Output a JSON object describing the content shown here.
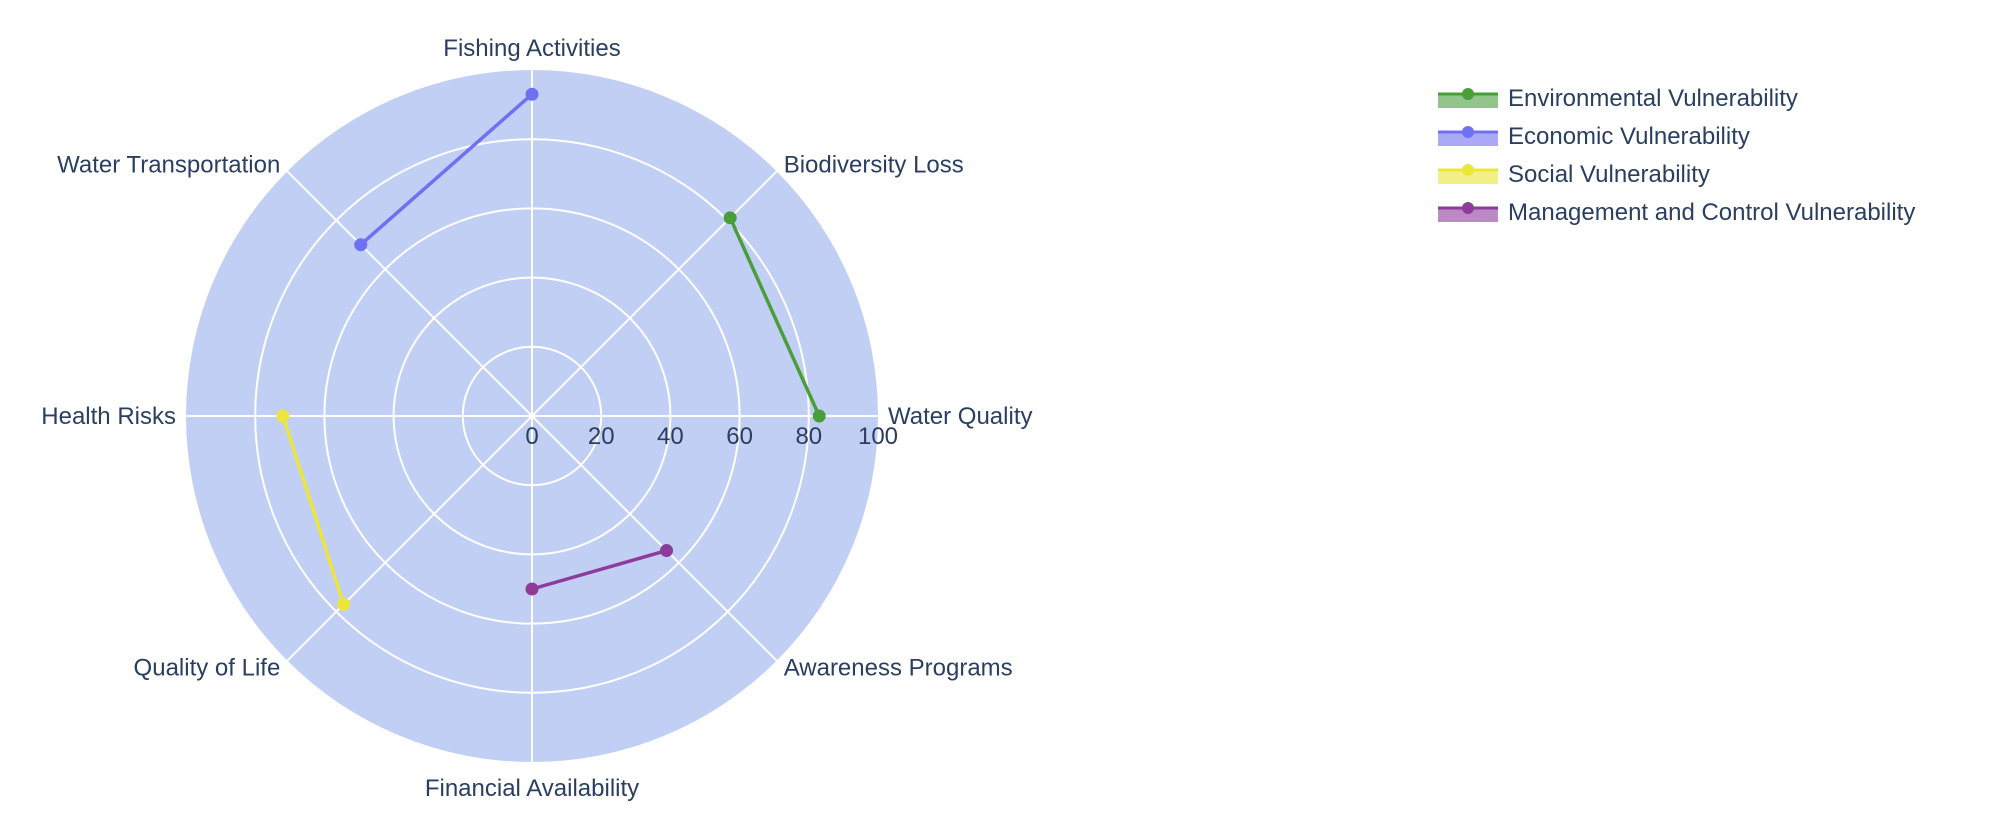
{
  "chart_data": {
    "type": "radar",
    "axes": [
      "Water Quality",
      "Biodiversity Loss",
      "Fishing Activities",
      "Water Transportation",
      "Health Risks",
      "Quality of Life",
      "Financial Availability",
      "Awareness Programs"
    ],
    "radial_range": [
      0,
      100
    ],
    "radial_ticks": [
      0,
      20,
      40,
      60,
      80,
      100
    ],
    "grid": true,
    "legend_position": "top-right",
    "series": [
      {
        "name": "Environmental Vulnerability",
        "color": "#4a9e3a",
        "points": [
          {
            "axis": "Water Quality",
            "value": 83
          },
          {
            "axis": "Biodiversity Loss",
            "value": 81
          }
        ]
      },
      {
        "name": "Economic Vulnerability",
        "color": "#7070f2",
        "points": [
          {
            "axis": "Fishing Activities",
            "value": 93
          },
          {
            "axis": "Water Transportation",
            "value": 70
          }
        ]
      },
      {
        "name": "Social Vulnerability",
        "color": "#ece63a",
        "points": [
          {
            "axis": "Health Risks",
            "value": 72
          },
          {
            "axis": "Quality of Life",
            "value": 77
          }
        ]
      },
      {
        "name": "Management and Control Vulnerability",
        "color": "#8e3c9a",
        "points": [
          {
            "axis": "Financial Availability",
            "value": 50
          },
          {
            "axis": "Awareness Programs",
            "value": 55
          }
        ]
      }
    ]
  }
}
